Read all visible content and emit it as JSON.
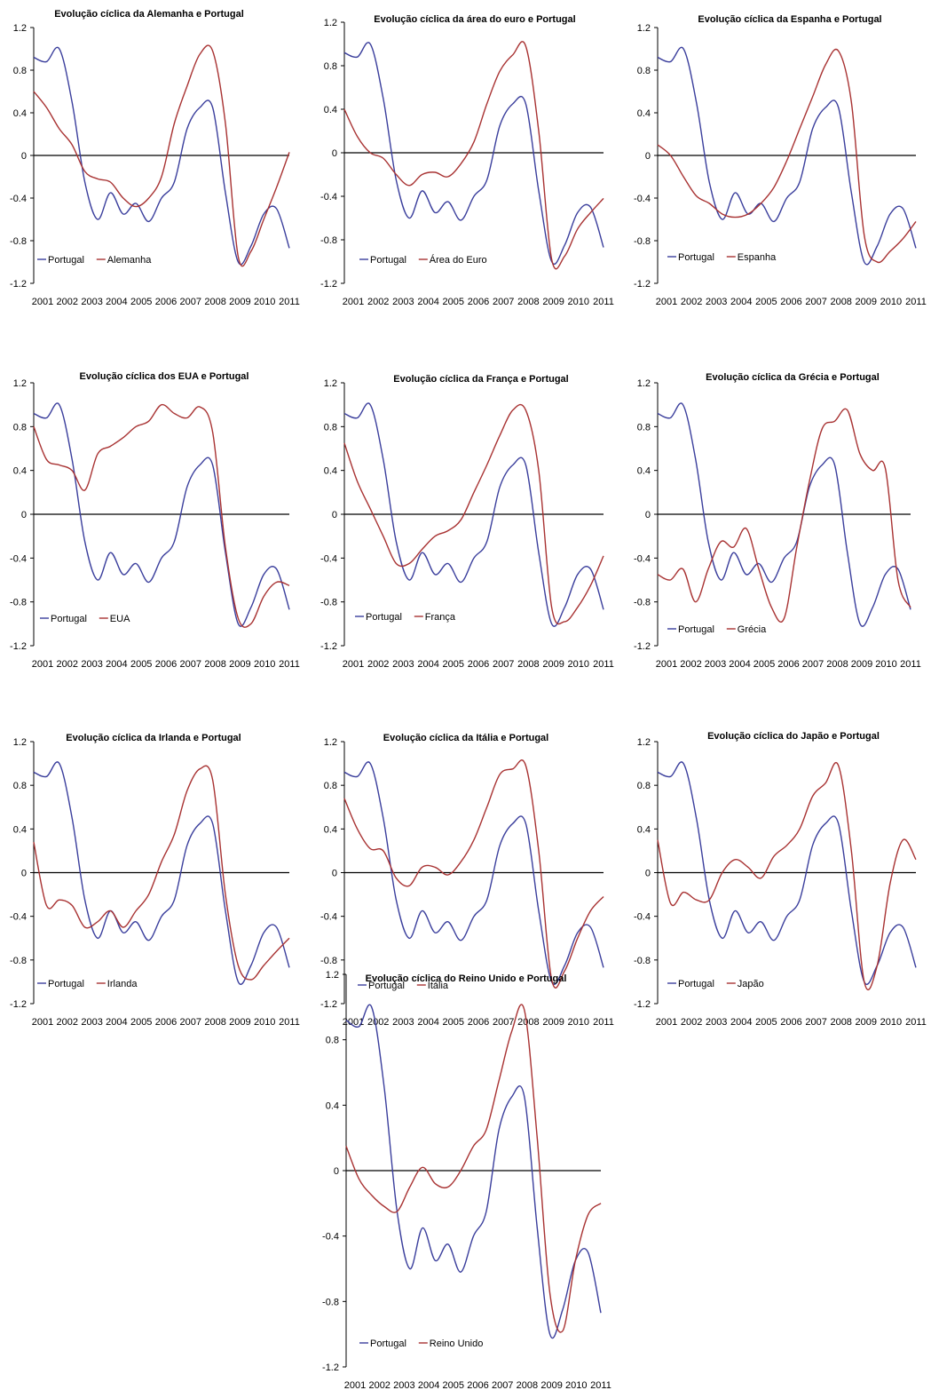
{
  "colors": {
    "portugal": "#3a3e9c",
    "comparison": "#a83232",
    "axis": "#000000"
  },
  "chart_data": [
    {
      "type": "line",
      "title": "Evolução cíclica da Alemanha e Portugal",
      "x": [
        2001,
        2001.5,
        2002,
        2002.5,
        2003,
        2003.5,
        2004,
        2004.5,
        2005,
        2005.5,
        2006,
        2006.5,
        2007,
        2007.5,
        2008,
        2008.5,
        2009,
        2009.5,
        2010,
        2010.5,
        2011
      ],
      "xticks": [
        "2001",
        "2002",
        "2003",
        "2004",
        "2005",
        "2006",
        "2007",
        "2008",
        "2009",
        "2010",
        "2011"
      ],
      "yticks": [
        "1.2",
        "0.8",
        "0.4",
        "0",
        "-0.4",
        "-0.8",
        "-1.2"
      ],
      "ylim": [
        -1.2,
        1.2
      ],
      "series": [
        {
          "name": "Portugal",
          "color": "portugal",
          "values": [
            0.92,
            0.88,
            1.0,
            0.5,
            -0.25,
            -0.6,
            -0.35,
            -0.55,
            -0.45,
            -0.62,
            -0.4,
            -0.25,
            0.25,
            0.45,
            0.45,
            -0.35,
            -1.0,
            -0.85,
            -0.55,
            -0.5,
            -0.87
          ]
        },
        {
          "name": "Alemanha",
          "color": "comparison",
          "values": [
            0.6,
            0.45,
            0.25,
            0.1,
            -0.15,
            -0.22,
            -0.25,
            -0.4,
            -0.48,
            -0.4,
            -0.2,
            0.3,
            0.65,
            0.95,
            0.98,
            0.3,
            -0.95,
            -0.9,
            -0.6,
            -0.3,
            0.03
          ]
        }
      ]
    },
    {
      "type": "line",
      "title": "Evolução cíclica da área do euro e Portugal",
      "x": [
        2001,
        2001.5,
        2002,
        2002.5,
        2003,
        2003.5,
        2004,
        2004.5,
        2005,
        2005.5,
        2006,
        2006.5,
        2007,
        2007.5,
        2008,
        2008.5,
        2009,
        2009.5,
        2010,
        2010.5,
        2011
      ],
      "xticks": [
        "2001",
        "2002",
        "2003",
        "2004",
        "2005",
        "2006",
        "2007",
        "2008",
        "2009",
        "2010",
        "2011"
      ],
      "yticks": [
        "1.2",
        "0.8",
        "0.4",
        "0",
        "-0.4",
        "-0.8",
        "-1.2"
      ],
      "ylim": [
        -1.2,
        1.2
      ],
      "series": [
        {
          "name": "Portugal",
          "color": "portugal",
          "values": [
            0.92,
            0.88,
            1.0,
            0.5,
            -0.25,
            -0.6,
            -0.35,
            -0.55,
            -0.45,
            -0.62,
            -0.4,
            -0.25,
            0.25,
            0.45,
            0.45,
            -0.35,
            -1.0,
            -0.85,
            -0.55,
            -0.5,
            -0.87
          ]
        },
        {
          "name": "Área do Euro",
          "color": "comparison",
          "values": [
            0.4,
            0.15,
            0.0,
            -0.05,
            -0.2,
            -0.3,
            -0.2,
            -0.18,
            -0.22,
            -0.1,
            0.1,
            0.45,
            0.75,
            0.9,
            0.98,
            0.2,
            -0.98,
            -0.95,
            -0.7,
            -0.55,
            -0.42
          ]
        }
      ]
    },
    {
      "type": "line",
      "title": "Evolução cíclica da Espanha e Portugal",
      "x": [
        2001,
        2001.5,
        2002,
        2002.5,
        2003,
        2003.5,
        2004,
        2004.5,
        2005,
        2005.5,
        2006,
        2006.5,
        2007,
        2007.5,
        2008,
        2008.5,
        2009,
        2009.5,
        2010,
        2010.5,
        2011
      ],
      "xticks": [
        "2001",
        "2002",
        "2003",
        "2004",
        "2005",
        "2006",
        "2007",
        "2008",
        "2009",
        "2010",
        "2011"
      ],
      "yticks": [
        "1.2",
        "0.8",
        "0.4",
        "0",
        "-0.4",
        "-0.8",
        "-1.2"
      ],
      "ylim": [
        -1.2,
        1.2
      ],
      "series": [
        {
          "name": "Portugal",
          "color": "portugal",
          "values": [
            0.92,
            0.88,
            1.0,
            0.5,
            -0.25,
            -0.6,
            -0.35,
            -0.55,
            -0.45,
            -0.62,
            -0.4,
            -0.25,
            0.25,
            0.45,
            0.45,
            -0.35,
            -1.0,
            -0.85,
            -0.55,
            -0.5,
            -0.87
          ]
        },
        {
          "name": "Espanha",
          "color": "comparison",
          "values": [
            0.1,
            0.0,
            -0.2,
            -0.38,
            -0.45,
            -0.55,
            -0.58,
            -0.55,
            -0.45,
            -0.3,
            -0.05,
            0.25,
            0.55,
            0.85,
            0.98,
            0.5,
            -0.75,
            -1.0,
            -0.9,
            -0.78,
            -0.62
          ]
        }
      ]
    },
    {
      "type": "line",
      "title": "Evolução cíclica dos EUA e Portugal",
      "x": [
        2001,
        2001.5,
        2002,
        2002.5,
        2003,
        2003.5,
        2004,
        2004.5,
        2005,
        2005.5,
        2006,
        2006.5,
        2007,
        2007.5,
        2008,
        2008.5,
        2009,
        2009.5,
        2010,
        2010.5,
        2011
      ],
      "xticks": [
        "2001",
        "2002",
        "2003",
        "2004",
        "2005",
        "2006",
        "2007",
        "2008",
        "2009",
        "2010",
        "2011"
      ],
      "yticks": [
        "1.2",
        "0.8",
        "0.4",
        "0",
        "-0.4",
        "-0.8",
        "-1.2"
      ],
      "ylim": [
        -1.2,
        1.2
      ],
      "series": [
        {
          "name": "Portugal",
          "color": "portugal",
          "values": [
            0.92,
            0.88,
            1.0,
            0.5,
            -0.25,
            -0.6,
            -0.35,
            -0.55,
            -0.45,
            -0.62,
            -0.4,
            -0.25,
            0.25,
            0.45,
            0.45,
            -0.35,
            -1.0,
            -0.85,
            -0.55,
            -0.5,
            -0.87
          ]
        },
        {
          "name": "EUA",
          "color": "comparison",
          "values": [
            0.8,
            0.5,
            0.45,
            0.4,
            0.22,
            0.55,
            0.62,
            0.7,
            0.8,
            0.85,
            1.0,
            0.92,
            0.88,
            0.98,
            0.75,
            -0.3,
            -0.95,
            -1.0,
            -0.75,
            -0.62,
            -0.65
          ]
        }
      ]
    },
    {
      "type": "line",
      "title": "Evolução cíclica da França e Portugal",
      "x": [
        2001,
        2001.5,
        2002,
        2002.5,
        2003,
        2003.5,
        2004,
        2004.5,
        2005,
        2005.5,
        2006,
        2006.5,
        2007,
        2007.5,
        2008,
        2008.5,
        2009,
        2009.5,
        2010,
        2010.5,
        2011
      ],
      "xticks": [
        "2001",
        "2002",
        "2003",
        "2004",
        "2005",
        "2006",
        "2007",
        "2008",
        "2009",
        "2010",
        "2011"
      ],
      "yticks": [
        "1.2",
        "0.8",
        "0.4",
        "0",
        "-0.4",
        "-0.8",
        "-1.2"
      ],
      "ylim": [
        -1.2,
        1.2
      ],
      "series": [
        {
          "name": "Portugal",
          "color": "portugal",
          "values": [
            0.92,
            0.88,
            1.0,
            0.5,
            -0.25,
            -0.6,
            -0.35,
            -0.55,
            -0.45,
            -0.62,
            -0.4,
            -0.25,
            0.25,
            0.45,
            0.45,
            -0.35,
            -1.0,
            -0.85,
            -0.55,
            -0.5,
            -0.87
          ]
        },
        {
          "name": "França",
          "color": "comparison",
          "values": [
            0.65,
            0.3,
            0.05,
            -0.2,
            -0.45,
            -0.45,
            -0.32,
            -0.2,
            -0.15,
            -0.05,
            0.2,
            0.45,
            0.72,
            0.95,
            0.95,
            0.4,
            -0.85,
            -0.98,
            -0.85,
            -0.65,
            -0.38
          ]
        }
      ]
    },
    {
      "type": "line",
      "title": "Evolução cíclica da Grécia e Portugal",
      "x": [
        2001,
        2001.5,
        2002,
        2002.5,
        2003,
        2003.5,
        2004,
        2004.5,
        2005,
        2005.5,
        2006,
        2006.5,
        2007,
        2007.5,
        2008,
        2008.5,
        2009,
        2009.5,
        2010,
        2010.5,
        2011
      ],
      "xticks": [
        "2001",
        "2002",
        "2003",
        "2004",
        "2005",
        "2006",
        "2007",
        "2008",
        "2009",
        "2010",
        "2011"
      ],
      "yticks": [
        "1.2",
        "0.8",
        "0.4",
        "0",
        "-0.4",
        "-0.8",
        "-1.2"
      ],
      "ylim": [
        -1.2,
        1.2
      ],
      "series": [
        {
          "name": "Portugal",
          "color": "portugal",
          "values": [
            0.92,
            0.88,
            1.0,
            0.5,
            -0.25,
            -0.6,
            -0.35,
            -0.55,
            -0.45,
            -0.62,
            -0.4,
            -0.25,
            0.25,
            0.45,
            0.45,
            -0.35,
            -1.0,
            -0.85,
            -0.55,
            -0.5,
            -0.87
          ]
        },
        {
          "name": "Grécia",
          "color": "comparison",
          "values": [
            -0.55,
            -0.6,
            -0.5,
            -0.8,
            -0.5,
            -0.25,
            -0.3,
            -0.13,
            -0.5,
            -0.85,
            -0.95,
            -0.3,
            0.3,
            0.78,
            0.85,
            0.95,
            0.55,
            0.4,
            0.42,
            -0.6,
            -0.85
          ]
        }
      ]
    },
    {
      "type": "line",
      "title": "Evolução cíclica da Irlanda e Portugal",
      "x": [
        2001,
        2001.5,
        2002,
        2002.5,
        2003,
        2003.5,
        2004,
        2004.5,
        2005,
        2005.5,
        2006,
        2006.5,
        2007,
        2007.5,
        2008,
        2008.5,
        2009,
        2009.5,
        2010,
        2010.5,
        2011
      ],
      "xticks": [
        "2001",
        "2002",
        "2003",
        "2004",
        "2005",
        "2006",
        "2007",
        "2008",
        "2009",
        "2010",
        "2011"
      ],
      "yticks": [
        "1.2",
        "0.8",
        "0.4",
        "0",
        "-0.4",
        "-0.8",
        "-1.2"
      ],
      "ylim": [
        -1.2,
        1.2
      ],
      "series": [
        {
          "name": "Portugal",
          "color": "portugal",
          "values": [
            0.92,
            0.88,
            1.0,
            0.5,
            -0.25,
            -0.6,
            -0.35,
            -0.55,
            -0.45,
            -0.62,
            -0.4,
            -0.25,
            0.25,
            0.45,
            0.45,
            -0.35,
            -1.0,
            -0.85,
            -0.55,
            -0.5,
            -0.87
          ]
        },
        {
          "name": "Irlanda",
          "color": "comparison",
          "values": [
            0.28,
            -0.3,
            -0.25,
            -0.3,
            -0.5,
            -0.45,
            -0.35,
            -0.5,
            -0.35,
            -0.2,
            0.1,
            0.35,
            0.75,
            0.95,
            0.85,
            -0.2,
            -0.85,
            -0.98,
            -0.85,
            -0.72,
            -0.6
          ]
        }
      ]
    },
    {
      "type": "line",
      "title": "Evolução cíclica da Itália e Portugal",
      "x": [
        2001,
        2001.5,
        2002,
        2002.5,
        2003,
        2003.5,
        2004,
        2004.5,
        2005,
        2005.5,
        2006,
        2006.5,
        2007,
        2007.5,
        2008,
        2008.5,
        2009,
        2009.5,
        2010,
        2010.5,
        2011
      ],
      "xticks": [
        "2001",
        "2002",
        "2003",
        "2004",
        "2005",
        "2006",
        "2007",
        "2008",
        "2009",
        "2010",
        "2011"
      ],
      "yticks": [
        "1.2",
        "0.8",
        "0.4",
        "0",
        "-0.4",
        "-0.8",
        "-1.2"
      ],
      "ylim": [
        -1.2,
        1.2
      ],
      "series": [
        {
          "name": "Portugal",
          "color": "portugal",
          "values": [
            0.92,
            0.88,
            1.0,
            0.5,
            -0.25,
            -0.6,
            -0.35,
            -0.55,
            -0.45,
            -0.62,
            -0.4,
            -0.25,
            0.25,
            0.45,
            0.45,
            -0.35,
            -1.0,
            -0.85,
            -0.55,
            -0.5,
            -0.87
          ]
        },
        {
          "name": "Itália",
          "color": "comparison",
          "values": [
            0.68,
            0.4,
            0.22,
            0.2,
            -0.05,
            -0.12,
            0.05,
            0.05,
            -0.02,
            0.1,
            0.3,
            0.6,
            0.9,
            0.95,
            0.98,
            0.2,
            -0.98,
            -0.9,
            -0.6,
            -0.35,
            -0.22
          ]
        }
      ]
    },
    {
      "type": "line",
      "title": "Evolução cíclica do Japão e Portugal",
      "x": [
        2001,
        2001.5,
        2002,
        2002.5,
        2003,
        2003.5,
        2004,
        2004.5,
        2005,
        2005.5,
        2006,
        2006.5,
        2007,
        2007.5,
        2008,
        2008.5,
        2009,
        2009.5,
        2010,
        2010.5,
        2011
      ],
      "xticks": [
        "2001",
        "2002",
        "2003",
        "2004",
        "2005",
        "2006",
        "2007",
        "2008",
        "2009",
        "2010",
        "2011"
      ],
      "yticks": [
        "1.2",
        "0.8",
        "0.4",
        "0",
        "-0.4",
        "-0.8",
        "-1.2"
      ],
      "ylim": [
        -1.2,
        1.2
      ],
      "series": [
        {
          "name": "Portugal",
          "color": "portugal",
          "values": [
            0.92,
            0.88,
            1.0,
            0.5,
            -0.25,
            -0.6,
            -0.35,
            -0.55,
            -0.45,
            -0.62,
            -0.4,
            -0.25,
            0.25,
            0.45,
            0.45,
            -0.35,
            -1.0,
            -0.85,
            -0.55,
            -0.5,
            -0.87
          ]
        },
        {
          "name": "Japão",
          "color": "comparison",
          "values": [
            0.3,
            -0.28,
            -0.18,
            -0.25,
            -0.25,
            0.0,
            0.12,
            0.05,
            -0.05,
            0.15,
            0.25,
            0.4,
            0.7,
            0.82,
            0.98,
            0.2,
            -1.0,
            -0.85,
            -0.1,
            0.3,
            0.12
          ]
        }
      ]
    },
    {
      "type": "line",
      "title": "Evolução cíclica do Reino Unido e Portugal",
      "x": [
        2001,
        2001.5,
        2002,
        2002.5,
        2003,
        2003.5,
        2004,
        2004.5,
        2005,
        2005.5,
        2006,
        2006.5,
        2007,
        2007.5,
        2008,
        2008.5,
        2009,
        2009.5,
        2010,
        2010.5,
        2011
      ],
      "xticks": [
        "2001",
        "2002",
        "2003",
        "2004",
        "2005",
        "2006",
        "2007",
        "2008",
        "2009",
        "2010",
        "2011"
      ],
      "yticks": [
        "1.2",
        "0.8",
        "0.4",
        "0",
        "-0.4",
        "-0.8",
        "-1.2"
      ],
      "ylim": [
        -1.2,
        1.2
      ],
      "series": [
        {
          "name": "Portugal",
          "color": "portugal",
          "values": [
            0.92,
            0.88,
            1.0,
            0.5,
            -0.25,
            -0.6,
            -0.35,
            -0.55,
            -0.45,
            -0.62,
            -0.4,
            -0.25,
            0.25,
            0.45,
            0.45,
            -0.35,
            -1.0,
            -0.85,
            -0.55,
            -0.5,
            -0.87
          ]
        },
        {
          "name": "Reino Unido",
          "color": "comparison",
          "values": [
            0.15,
            -0.05,
            -0.15,
            -0.22,
            -0.25,
            -0.1,
            0.02,
            -0.08,
            -0.1,
            0.0,
            0.15,
            0.25,
            0.55,
            0.85,
            0.98,
            0.2,
            -0.75,
            -0.98,
            -0.55,
            -0.27,
            -0.2
          ]
        }
      ]
    }
  ]
}
